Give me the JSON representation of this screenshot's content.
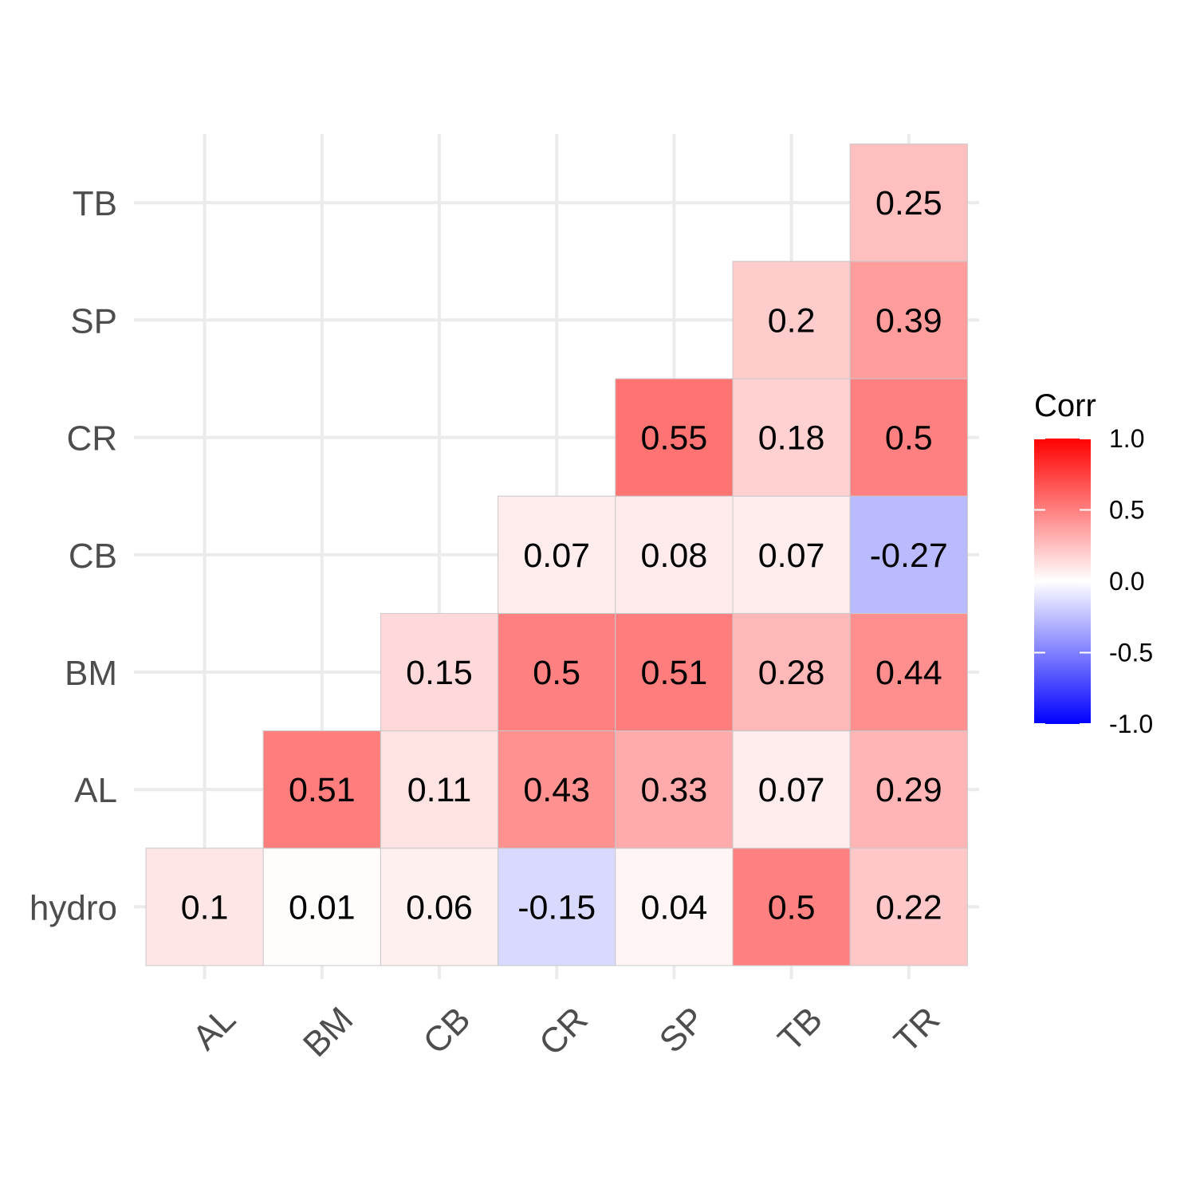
{
  "chart_data": {
    "type": "heatmap",
    "x_categories": [
      "AL",
      "BM",
      "CB",
      "CR",
      "SP",
      "TB",
      "TR"
    ],
    "y_categories": [
      "hydro",
      "AL",
      "BM",
      "CB",
      "CR",
      "SP",
      "TB"
    ],
    "cells": [
      {
        "x": "AL",
        "y": "hydro",
        "value": 0.1,
        "label": "0.1"
      },
      {
        "x": "BM",
        "y": "hydro",
        "value": 0.01,
        "label": "0.01"
      },
      {
        "x": "CB",
        "y": "hydro",
        "value": 0.06,
        "label": "0.06"
      },
      {
        "x": "CR",
        "y": "hydro",
        "value": -0.15,
        "label": "-0.15"
      },
      {
        "x": "SP",
        "y": "hydro",
        "value": 0.04,
        "label": "0.04"
      },
      {
        "x": "TB",
        "y": "hydro",
        "value": 0.5,
        "label": "0.5"
      },
      {
        "x": "TR",
        "y": "hydro",
        "value": 0.22,
        "label": "0.22"
      },
      {
        "x": "BM",
        "y": "AL",
        "value": 0.51,
        "label": "0.51"
      },
      {
        "x": "CB",
        "y": "AL",
        "value": 0.11,
        "label": "0.11"
      },
      {
        "x": "CR",
        "y": "AL",
        "value": 0.43,
        "label": "0.43"
      },
      {
        "x": "SP",
        "y": "AL",
        "value": 0.33,
        "label": "0.33"
      },
      {
        "x": "TB",
        "y": "AL",
        "value": 0.07,
        "label": "0.07"
      },
      {
        "x": "TR",
        "y": "AL",
        "value": 0.29,
        "label": "0.29"
      },
      {
        "x": "CB",
        "y": "BM",
        "value": 0.15,
        "label": "0.15"
      },
      {
        "x": "CR",
        "y": "BM",
        "value": 0.5,
        "label": "0.5"
      },
      {
        "x": "SP",
        "y": "BM",
        "value": 0.51,
        "label": "0.51"
      },
      {
        "x": "TB",
        "y": "BM",
        "value": 0.28,
        "label": "0.28"
      },
      {
        "x": "TR",
        "y": "BM",
        "value": 0.44,
        "label": "0.44"
      },
      {
        "x": "CR",
        "y": "CB",
        "value": 0.07,
        "label": "0.07"
      },
      {
        "x": "SP",
        "y": "CB",
        "value": 0.08,
        "label": "0.08"
      },
      {
        "x": "TB",
        "y": "CB",
        "value": 0.07,
        "label": "0.07"
      },
      {
        "x": "TR",
        "y": "CB",
        "value": -0.27,
        "label": "-0.27"
      },
      {
        "x": "SP",
        "y": "CR",
        "value": 0.55,
        "label": "0.55"
      },
      {
        "x": "TB",
        "y": "CR",
        "value": 0.18,
        "label": "0.18"
      },
      {
        "x": "TR",
        "y": "CR",
        "value": 0.5,
        "label": "0.5"
      },
      {
        "x": "TB",
        "y": "SP",
        "value": 0.2,
        "label": "0.2"
      },
      {
        "x": "TR",
        "y": "SP",
        "value": 0.39,
        "label": "0.39"
      },
      {
        "x": "TR",
        "y": "TB",
        "value": 0.25,
        "label": "0.25"
      }
    ],
    "legend": {
      "title": "Corr",
      "ticks": [
        "1.0",
        "0.5",
        "0.0",
        "-0.5",
        "-1.0"
      ],
      "tick_values": [
        1.0,
        0.5,
        0.0,
        -0.5,
        -1.0
      ],
      "range": [
        -1.0,
        1.0
      ],
      "placement": "right"
    },
    "colors": {
      "low": "#0000ff",
      "mid": "#ffffff",
      "high": "#ff0000",
      "grid": "#ebebeb",
      "axis_text": "#4d4d4d"
    },
    "grid": true
  }
}
